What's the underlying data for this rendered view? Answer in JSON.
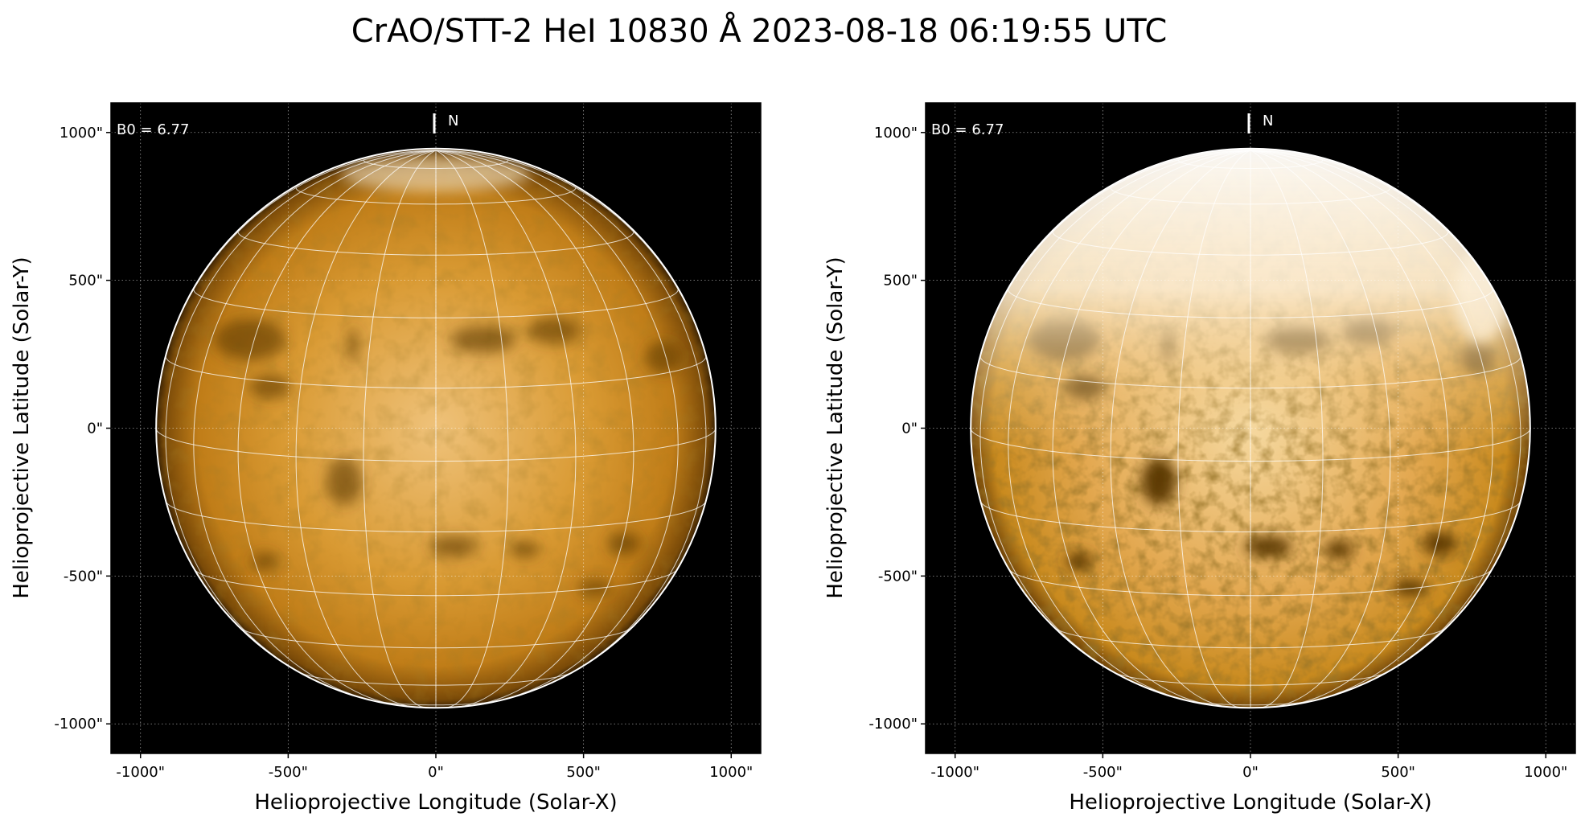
{
  "title": "CrAO/STT-2 HeI 10830 Å 2023-08-18 06:19:55 UTC",
  "panels": [
    {
      "id": "left",
      "b0_label": "B0 = 6.77",
      "north_label": "N",
      "xlabel": "Helioprojective Longitude (Solar-X)",
      "ylabel": "Helioprojective Latitude (Solar-Y)",
      "x_ticks": [
        "-1000\"",
        "-500\"",
        "0\"",
        "500\"",
        "1000\""
      ],
      "y_ticks": [
        "1000\"",
        "500\"",
        "0\"",
        "-500\"",
        "-1000\""
      ],
      "tick_values": [
        -1000,
        -500,
        0,
        500,
        1000
      ],
      "axis_range_arcsec": [
        -1100,
        1100
      ],
      "solar_radius_arcsec": 947,
      "contrast": "normal"
    },
    {
      "id": "right",
      "b0_label": "B0 = 6.77",
      "north_label": "N",
      "xlabel": "Helioprojective Longitude (Solar-X)",
      "ylabel": "Helioprojective Latitude (Solar-Y)",
      "x_ticks": [
        "-1000\"",
        "-500\"",
        "0\"",
        "500\"",
        "1000\""
      ],
      "y_ticks": [
        "1000\"",
        "500\"",
        "0\"",
        "-500\"",
        "-1000\""
      ],
      "tick_values": [
        -1000,
        -500,
        0,
        500,
        1000
      ],
      "axis_range_arcsec": [
        -1100,
        1100
      ],
      "solar_radius_arcsec": 947,
      "contrast": "enhanced"
    }
  ],
  "colors": {
    "disk_base": "#c98a1e",
    "disk_bright": "#f2c983",
    "disk_dark": "#5a3505",
    "enhanced_bright": "#fbe9c6",
    "background": "#000000",
    "grid_line": "#ffffff"
  },
  "dark_features": [
    {
      "x": -630,
      "y": 300,
      "rx": 120,
      "ry": 70
    },
    {
      "x": -560,
      "y": 140,
      "rx": 70,
      "ry": 40
    },
    {
      "x": -280,
      "y": 280,
      "rx": 18,
      "ry": 60
    },
    {
      "x": 160,
      "y": 300,
      "rx": 110,
      "ry": 45
    },
    {
      "x": 400,
      "y": 330,
      "rx": 90,
      "ry": 45
    },
    {
      "x": 770,
      "y": 240,
      "rx": 60,
      "ry": 55
    },
    {
      "x": -310,
      "y": -180,
      "rx": 60,
      "ry": 80
    },
    {
      "x": 60,
      "y": -400,
      "rx": 80,
      "ry": 35
    },
    {
      "x": 300,
      "y": -410,
      "rx": 50,
      "ry": 30
    },
    {
      "x": 640,
      "y": -390,
      "rx": 55,
      "ry": 40
    },
    {
      "x": -580,
      "y": -450,
      "rx": 45,
      "ry": 30
    },
    {
      "x": 540,
      "y": -540,
      "rx": 60,
      "ry": 28
    }
  ]
}
